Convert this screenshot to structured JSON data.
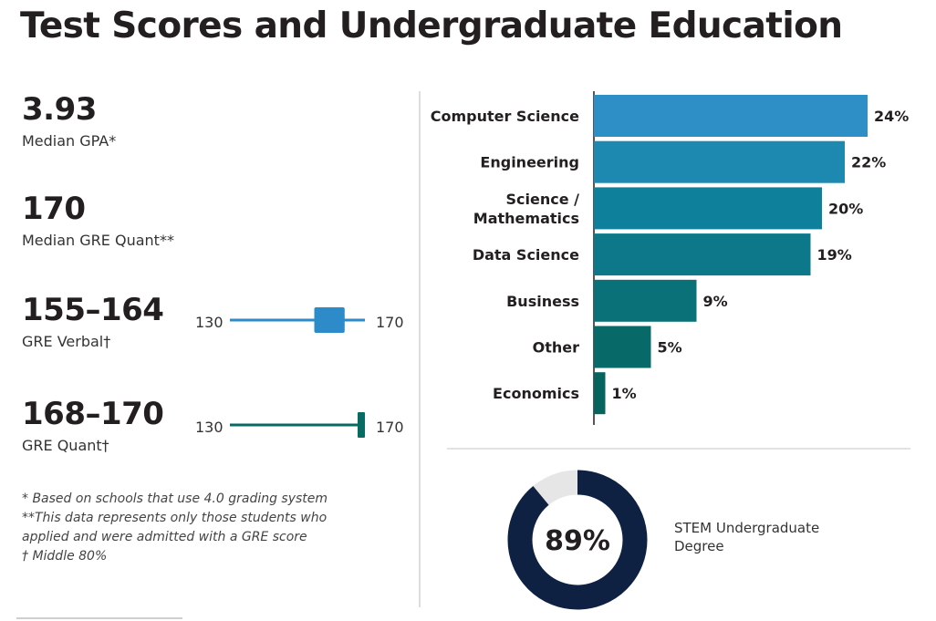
{
  "page": {
    "title": "Test Scores and Undergraduate Education"
  },
  "stats": {
    "gpa": {
      "value": "3.93",
      "label": "Median GPA*"
    },
    "gre_quant_median": {
      "value": "170",
      "label": "Median GRE Quant**"
    },
    "gre_verbal": {
      "value": "155–164",
      "label": "GRE Verbal†",
      "scale_min_label": "130",
      "scale_max_label": "170",
      "scale_min": 130,
      "scale_max": 170,
      "range_low": 155,
      "range_high": 164,
      "color": "#2e8bc9"
    },
    "gre_quant": {
      "value": "168–170",
      "label": "GRE Quant†",
      "scale_min_label": "130",
      "scale_max_label": "170",
      "scale_min": 130,
      "scale_max": 170,
      "range_low": 168,
      "range_high": 170,
      "color": "#076a63"
    }
  },
  "footnotes": [
    "* Based on schools that use 4.0 grading system",
    "**This data represents only those students who",
    "applied and were admitted with a GRE score",
    "† Middle 80%"
  ],
  "chart_data": [
    {
      "type": "bar",
      "orientation": "horizontal",
      "categories": [
        "Computer Science",
        "Engineering",
        "Science / Mathematics",
        "Data Science",
        "Business",
        "Other",
        "Economics"
      ],
      "category_lines": [
        [
          "Computer Science"
        ],
        [
          "Engineering"
        ],
        [
          "Science /",
          "Mathematics"
        ],
        [
          "Data Science"
        ],
        [
          "Business"
        ],
        [
          "Other"
        ],
        [
          "Economics"
        ]
      ],
      "values": [
        24,
        22,
        20,
        19,
        9,
        5,
        1
      ],
      "value_labels": [
        "24%",
        "22%",
        "20%",
        "19%",
        "9%",
        "5%",
        "1%"
      ],
      "colors": [
        "#2e8fc6",
        "#1d88b0",
        "#0f809c",
        "#0c7889",
        "#0b7178",
        "#086a68",
        "#07635e"
      ],
      "xlim": [
        0,
        24
      ],
      "grid": false,
      "legend": false,
      "title": "",
      "xlabel": "",
      "ylabel": ""
    },
    {
      "type": "pie",
      "style": "donut",
      "values": [
        89,
        11
      ],
      "center_label": "89%",
      "caption": "STEM Undergraduate Degree",
      "colors": [
        "#0f2143",
        "#e6e6e6"
      ]
    }
  ]
}
